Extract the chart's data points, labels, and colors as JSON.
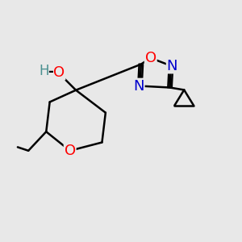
{
  "background_color": "#e8e8e8",
  "bond_color": "#000000",
  "bond_width": 1.8,
  "O_color": "#ff0000",
  "N_color": "#0000cd",
  "H_color": "#4a9090",
  "C_color": "#000000",
  "fig_w": 3.0,
  "fig_h": 3.0,
  "dpi": 100,
  "xlim": [
    0,
    10
  ],
  "ylim": [
    0,
    10
  ]
}
